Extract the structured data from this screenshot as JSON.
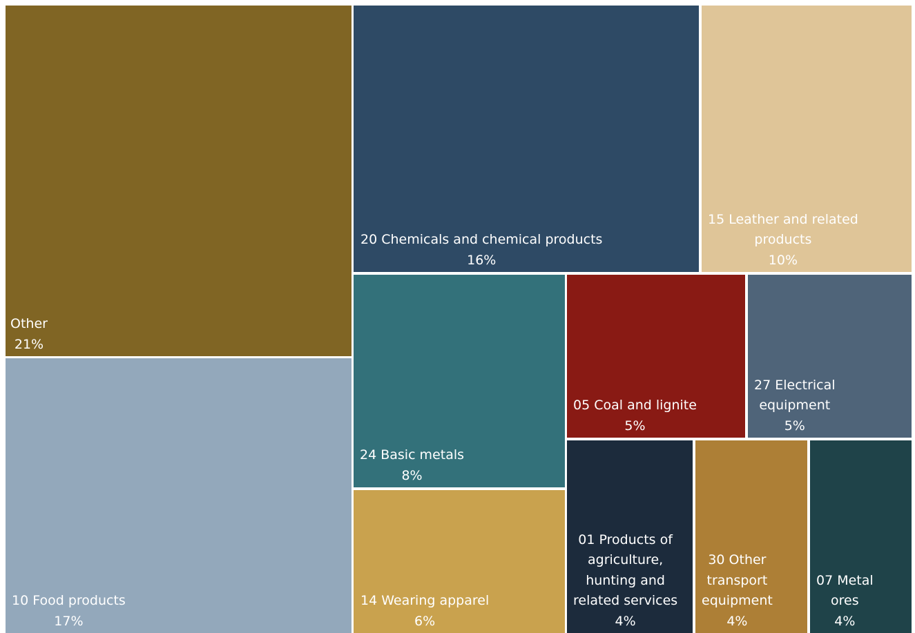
{
  "chart_data": {
    "type": "treemap",
    "items": [
      {
        "id": "other",
        "lines": [
          "Other"
        ],
        "value": "21%",
        "percent": 21,
        "color": "#806524"
      },
      {
        "id": "food",
        "lines": [
          "10 Food products"
        ],
        "value": "17%",
        "percent": 17,
        "color": "#93A8BB"
      },
      {
        "id": "chemicals",
        "lines": [
          "20 Chemicals and chemical products"
        ],
        "value": "16%",
        "percent": 16,
        "color": "#2E4A65"
      },
      {
        "id": "leather",
        "lines": [
          "15 Leather and related",
          "products"
        ],
        "value": "10%",
        "percent": 10,
        "color": "#DFC598"
      },
      {
        "id": "basic",
        "lines": [
          "24 Basic metals"
        ],
        "value": "8%",
        "percent": 8,
        "color": "#33717A"
      },
      {
        "id": "apparel",
        "lines": [
          "14 Wearing apparel"
        ],
        "value": "6%",
        "percent": 6,
        "color": "#C9A24E"
      },
      {
        "id": "coal",
        "lines": [
          "05 Coal and lignite"
        ],
        "value": "5%",
        "percent": 5,
        "color": "#891A14"
      },
      {
        "id": "electrical",
        "lines": [
          "27 Electrical",
          "equipment"
        ],
        "value": "5%",
        "percent": 5,
        "color": "#4F6479"
      },
      {
        "id": "agri",
        "lines": [
          "01 Products of",
          "agriculture,",
          "hunting and",
          "related services"
        ],
        "value": "4%",
        "percent": 4,
        "color": "#1C2B3C"
      },
      {
        "id": "transport",
        "lines": [
          "30 Other",
          "transport",
          "equipment"
        ],
        "value": "4%",
        "percent": 4,
        "color": "#AD7F36"
      },
      {
        "id": "metalores",
        "lines": [
          "07 Metal",
          "ores"
        ],
        "value": "4%",
        "percent": 4,
        "color": "#1F4349"
      }
    ]
  }
}
